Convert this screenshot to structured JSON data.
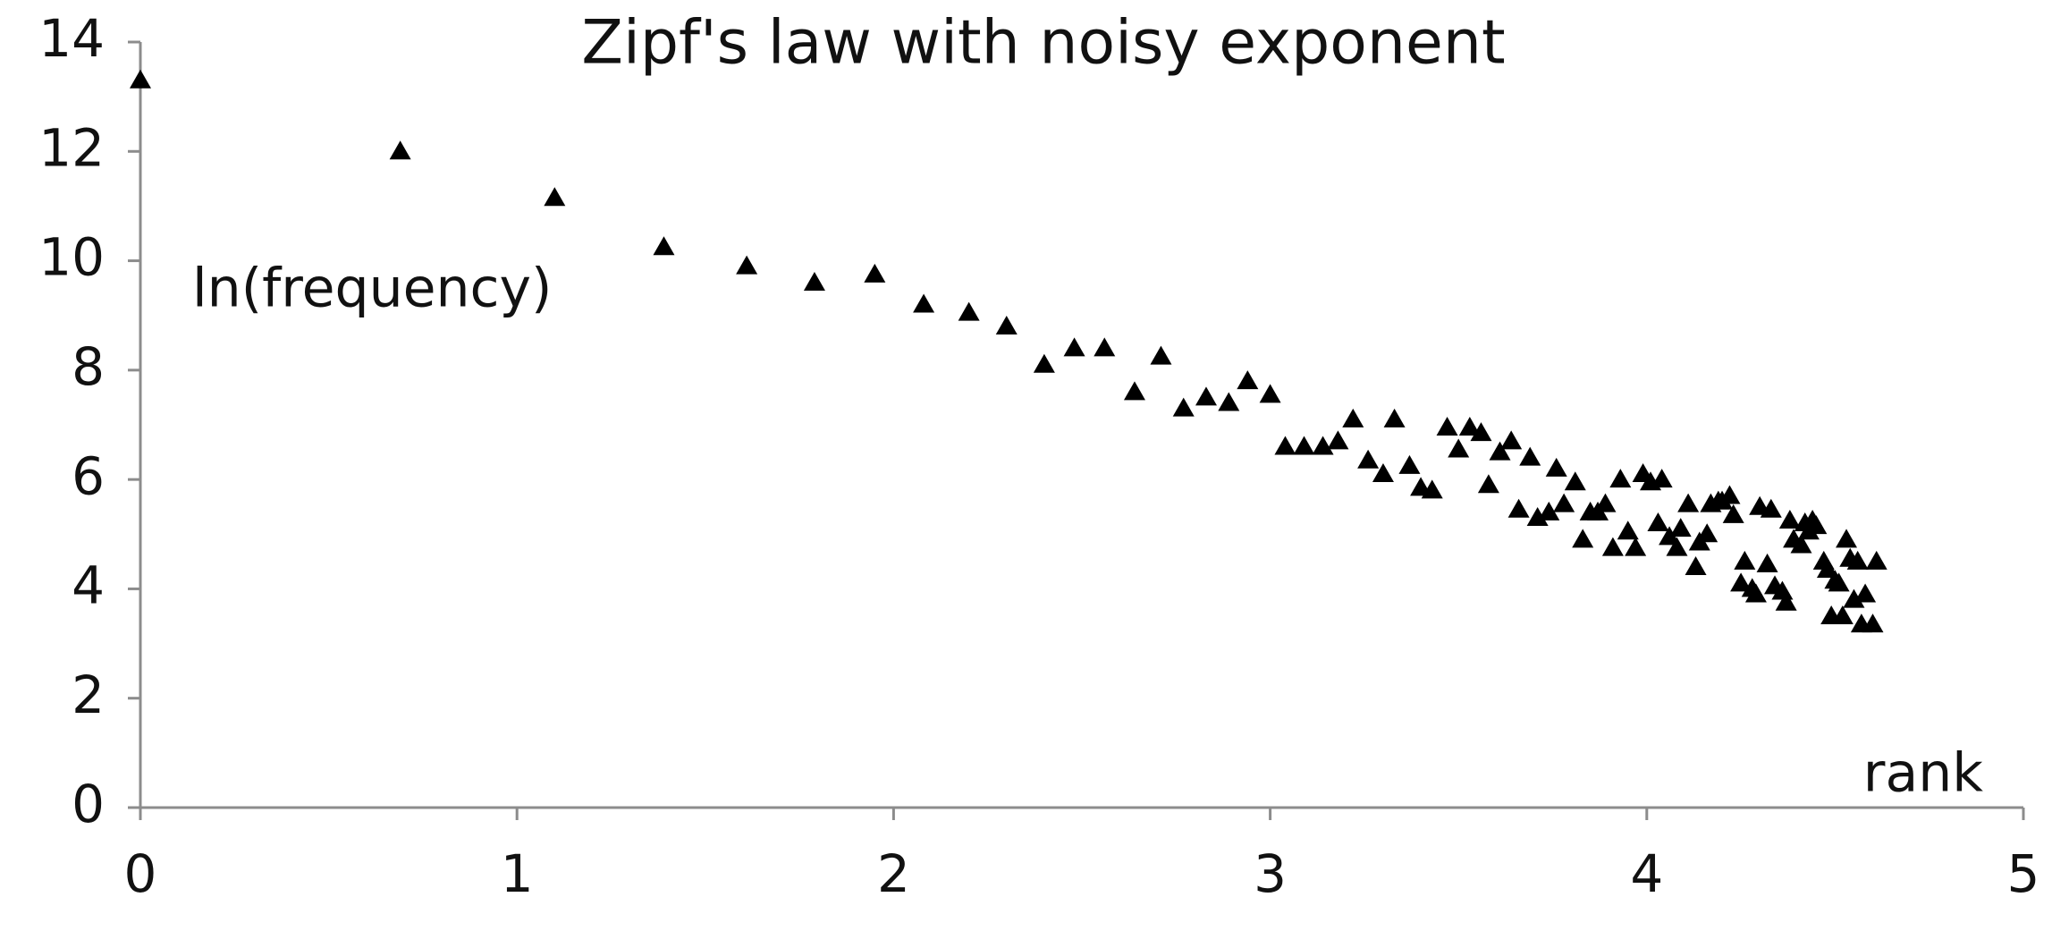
{
  "chart_data": {
    "type": "scatter",
    "title": "Zipf's law with noisy exponent",
    "x_label": "rank",
    "y_label": "ln(frequency)",
    "x": [
      0,
      0.69,
      1.1,
      1.39,
      1.61,
      1.79,
      1.95,
      2.08,
      2.2,
      2.3,
      2.4,
      2.48,
      2.56,
      2.64,
      2.71,
      2.77,
      2.83,
      2.89,
      2.94,
      3.0,
      3.04,
      3.09,
      3.14,
      3.18,
      3.22,
      3.26,
      3.3,
      3.33,
      3.37,
      3.4,
      3.43,
      3.47,
      3.5,
      3.53,
      3.56,
      3.58,
      3.61,
      3.64,
      3.66,
      3.69,
      3.71,
      3.74,
      3.76,
      3.78,
      3.81,
      3.83,
      3.85,
      3.87,
      3.89,
      3.91,
      3.93,
      3.95,
      3.97,
      3.99,
      4.01,
      4.03,
      4.04,
      4.06,
      4.08,
      4.09,
      4.11,
      4.13,
      4.14,
      4.16,
      4.17,
      4.19,
      4.2,
      4.22,
      4.23,
      4.25,
      4.26,
      4.28,
      4.29,
      4.3,
      4.32,
      4.33,
      4.34,
      4.36,
      4.37,
      4.38,
      4.39,
      4.41,
      4.42,
      4.43,
      4.44,
      4.45,
      4.47,
      4.48,
      4.49,
      4.5,
      4.51,
      4.52,
      4.53,
      4.54,
      4.55,
      4.56,
      4.57,
      4.58,
      4.6,
      4.61
    ],
    "values": [
      13.3,
      12.0,
      11.15,
      10.25,
      9.9,
      9.6,
      9.75,
      9.2,
      9.05,
      8.8,
      8.1,
      8.4,
      8.4,
      7.6,
      8.25,
      7.3,
      7.5,
      7.4,
      7.8,
      7.55,
      6.6,
      6.6,
      6.6,
      6.7,
      7.1,
      6.35,
      6.1,
      7.1,
      6.25,
      5.85,
      5.8,
      6.95,
      6.55,
      6.95,
      6.85,
      5.9,
      6.5,
      6.7,
      5.45,
      6.4,
      5.3,
      5.4,
      6.2,
      5.55,
      5.95,
      4.9,
      5.4,
      5.4,
      5.55,
      4.75,
      6.0,
      5.05,
      4.75,
      6.1,
      5.95,
      5.2,
      6.0,
      4.95,
      4.75,
      5.1,
      5.55,
      4.4,
      4.85,
      5.0,
      5.55,
      5.6,
      5.6,
      5.7,
      5.35,
      4.1,
      4.5,
      4.0,
      3.9,
      5.5,
      4.45,
      5.45,
      4.05,
      3.95,
      3.75,
      5.25,
      4.9,
      4.8,
      5.2,
      5.05,
      5.25,
      5.15,
      4.5,
      4.35,
      3.5,
      4.15,
      4.1,
      3.5,
      4.9,
      4.55,
      3.8,
      4.5,
      3.35,
      3.9,
      3.35,
      4.5
    ],
    "color": "#000000",
    "marker": "triangle",
    "xlim": [
      0,
      5
    ],
    "xticks": [
      0,
      1,
      2,
      3,
      4,
      5
    ],
    "ylim": [
      0,
      14
    ],
    "yticks": [
      0,
      2,
      4,
      6,
      8,
      10,
      12,
      14
    ]
  }
}
